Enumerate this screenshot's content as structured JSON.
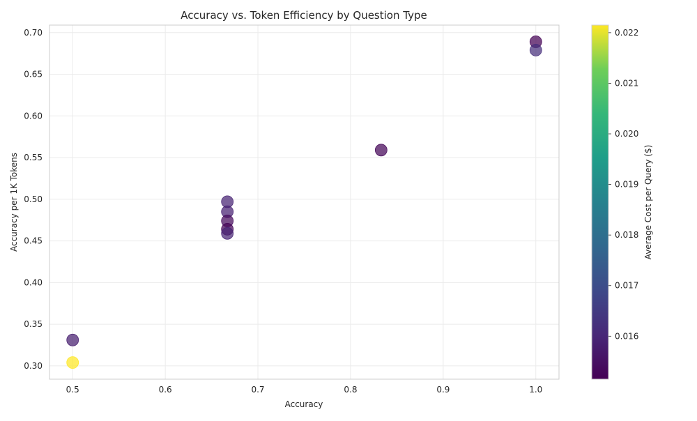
{
  "chart_data": {
    "type": "scatter",
    "title": "Accuracy vs. Token Efficiency by Question Type",
    "xlabel": "Accuracy",
    "ylabel": "Accuracy per 1K Tokens",
    "xlim": [
      0.475,
      1.025
    ],
    "ylim": [
      0.284,
      0.709
    ],
    "xticks": [
      "0.5",
      "0.6",
      "0.7",
      "0.8",
      "0.9",
      "1.0"
    ],
    "yticks": [
      "0.30",
      "0.35",
      "0.40",
      "0.45",
      "0.50",
      "0.55",
      "0.60",
      "0.65",
      "0.70"
    ],
    "grid": true,
    "colorbar": {
      "label": "Average Cost per Query ($)",
      "min": 0.01515,
      "max": 0.02215,
      "ticks": [
        "0.016",
        "0.017",
        "0.018",
        "0.019",
        "0.020",
        "0.021",
        "0.022"
      ],
      "colormap": "viridis"
    },
    "points": [
      {
        "x": 1.0,
        "y": 0.689,
        "cost": 0.01515
      },
      {
        "x": 1.0,
        "y": 0.679,
        "cost": 0.0162
      },
      {
        "x": 0.833,
        "y": 0.559,
        "cost": 0.01525
      },
      {
        "x": 0.667,
        "y": 0.497,
        "cost": 0.0159
      },
      {
        "x": 0.667,
        "y": 0.485,
        "cost": 0.01585
      },
      {
        "x": 0.667,
        "y": 0.474,
        "cost": 0.01535
      },
      {
        "x": 0.667,
        "y": 0.464,
        "cost": 0.0152
      },
      {
        "x": 0.667,
        "y": 0.459,
        "cost": 0.01595
      },
      {
        "x": 0.5,
        "y": 0.331,
        "cost": 0.0158
      },
      {
        "x": 0.5,
        "y": 0.304,
        "cost": 0.02215
      }
    ]
  }
}
